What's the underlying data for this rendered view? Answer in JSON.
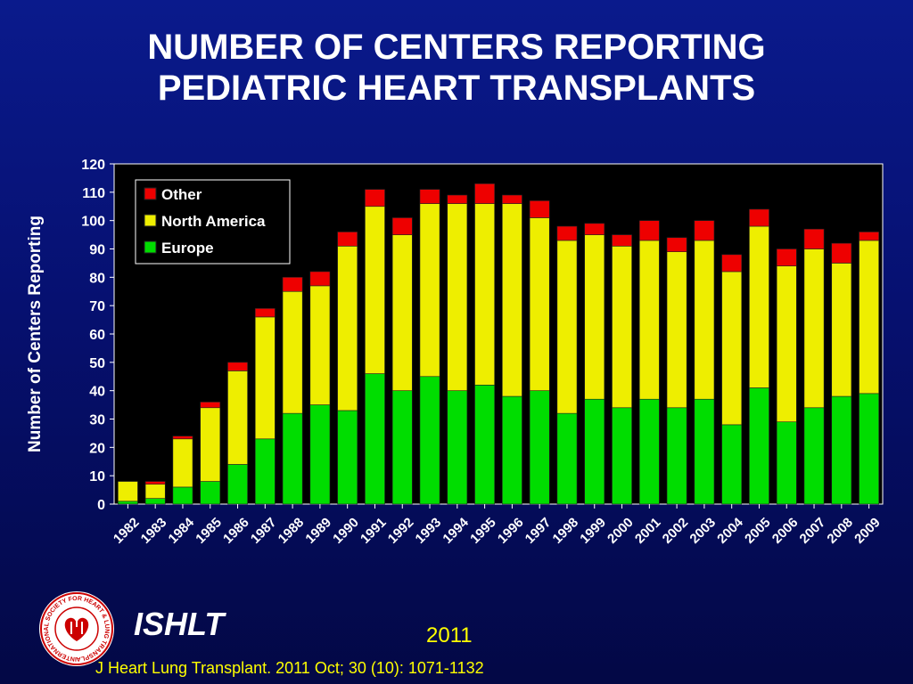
{
  "title": {
    "line1": "NUMBER OF CENTERS REPORTING",
    "line2": "PEDIATRIC HEART TRANSPLANTS"
  },
  "footer": {
    "brand": "ISHLT",
    "year": "2011",
    "citation": "J Heart Lung Transplant. 2011 Oct; 30 (10): 1071-1132"
  },
  "logo": {
    "text": "INTERNATIONAL SOCIETY FOR HEART & LUNG TRANSPLANTATION",
    "icon": "heart-lung-seal-icon"
  },
  "colors": {
    "background": "#06127a",
    "plot_area": "#000000",
    "europe": "#00dd00",
    "north_america": "#eeee00",
    "other": "#ee0000",
    "axis_text": "#ffffff",
    "accent_text": "#ffff00"
  },
  "chart_data": {
    "type": "bar",
    "stacked": true,
    "ylabel": "Number of Centers Reporting",
    "xlabel": "",
    "ylim": [
      0,
      120
    ],
    "yticks": [
      0,
      10,
      20,
      30,
      40,
      50,
      60,
      70,
      80,
      90,
      100,
      110,
      120
    ],
    "grid": false,
    "legend_position": "top-left",
    "categories": [
      "1982",
      "1983",
      "1984",
      "1985",
      "1986",
      "1987",
      "1988",
      "1989",
      "1990",
      "1991",
      "1992",
      "1993",
      "1994",
      "1995",
      "1996",
      "1997",
      "1998",
      "1999",
      "2000",
      "2001",
      "2002",
      "2003",
      "2004",
      "2005",
      "2006",
      "2007",
      "2008",
      "2009"
    ],
    "series": [
      {
        "name": "Europe",
        "color": "#00dd00",
        "values": [
          1,
          2,
          6,
          8,
          14,
          23,
          32,
          35,
          33,
          46,
          40,
          45,
          40,
          42,
          38,
          40,
          32,
          37,
          34,
          37,
          34,
          37,
          28,
          41,
          29,
          34,
          38,
          39
        ]
      },
      {
        "name": "North America",
        "color": "#eeee00",
        "values": [
          7,
          5,
          17,
          26,
          33,
          43,
          43,
          42,
          58,
          59,
          55,
          61,
          66,
          64,
          68,
          61,
          61,
          58,
          57,
          56,
          55,
          56,
          54,
          57,
          55,
          56,
          47,
          54
        ]
      },
      {
        "name": "Other",
        "color": "#ee0000",
        "values": [
          0,
          1,
          1,
          2,
          3,
          3,
          5,
          5,
          5,
          6,
          6,
          5,
          3,
          7,
          3,
          6,
          5,
          4,
          4,
          7,
          5,
          7,
          6,
          6,
          6,
          7,
          7,
          3
        ]
      }
    ],
    "legend_order": [
      "Other",
      "North America",
      "Europe"
    ]
  }
}
